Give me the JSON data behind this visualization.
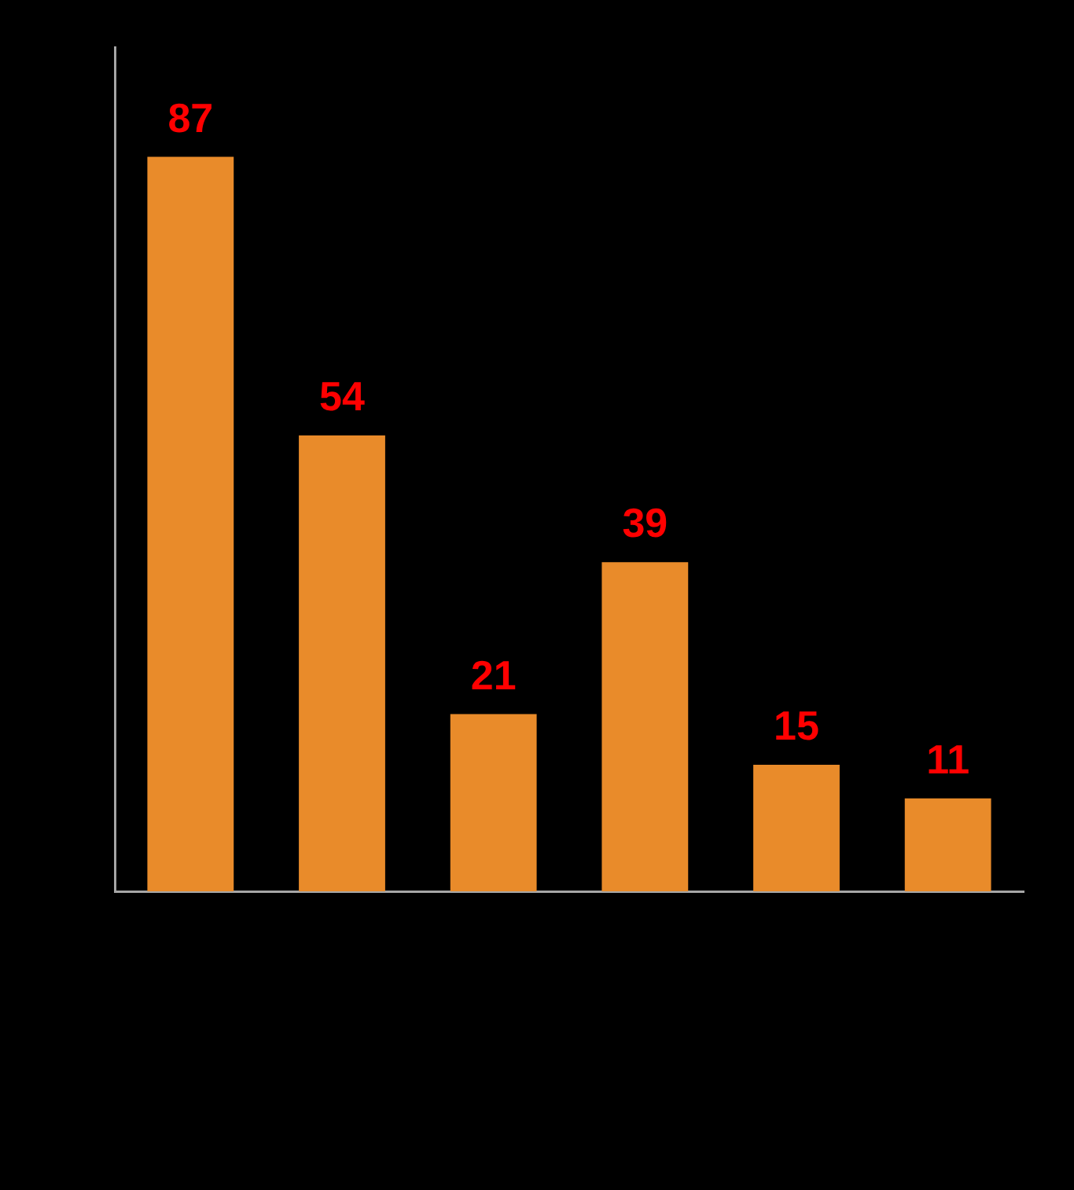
{
  "chart_data": {
    "type": "bar",
    "categories": [
      null,
      null,
      null,
      null,
      null,
      null
    ],
    "values": [
      87,
      54,
      21,
      39,
      15,
      11
    ],
    "color": "#e98b2a",
    "ylim": [
      0,
      100
    ],
    "data_labels": true,
    "tick_labels": false,
    "grid": false,
    "legend": false
  }
}
